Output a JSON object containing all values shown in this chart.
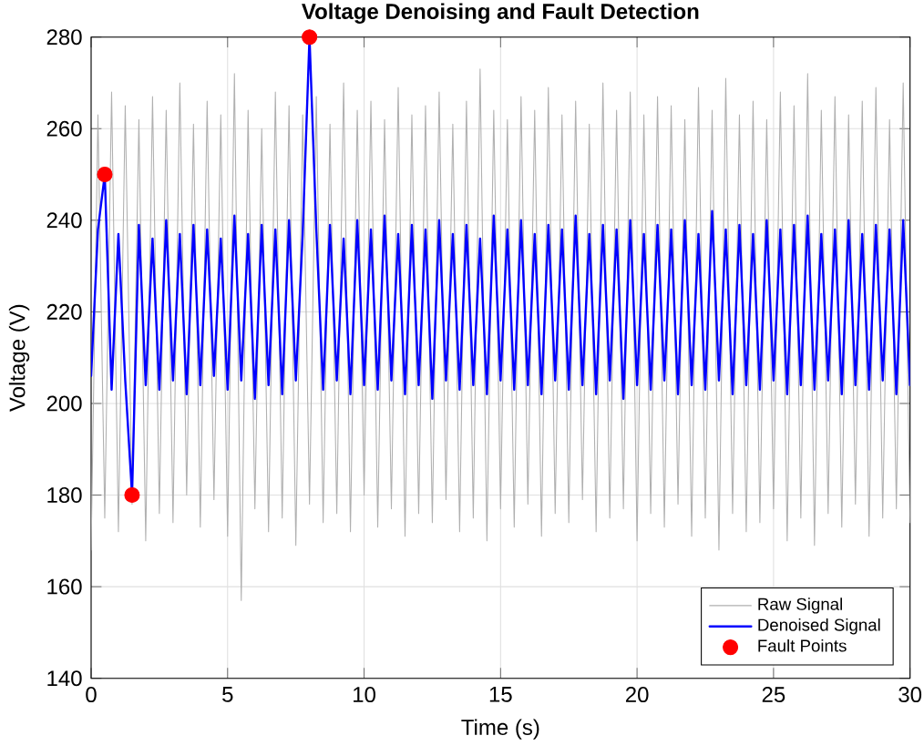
{
  "chart_data": {
    "type": "line",
    "title": "Voltage Denoising and Fault Detection",
    "xlabel": "Time (s)",
    "ylabel": "Voltage (V)",
    "x": [
      0,
      0.25,
      0.5,
      0.75,
      1,
      1.25,
      1.5,
      1.75,
      2,
      2.25,
      2.5,
      2.75,
      3,
      3.25,
      3.5,
      3.75,
      4,
      4.25,
      4.5,
      4.75,
      5,
      5.25,
      5.5,
      5.75,
      6,
      6.25,
      6.5,
      6.75,
      7,
      7.25,
      7.5,
      7.75,
      8,
      8.25,
      8.5,
      8.75,
      9,
      9.25,
      9.5,
      9.75,
      10,
      10.25,
      10.5,
      10.75,
      11,
      11.25,
      11.5,
      11.75,
      12,
      12.25,
      12.5,
      12.75,
      13,
      13.25,
      13.5,
      13.75,
      14,
      14.25,
      14.5,
      14.75,
      15,
      15.25,
      15.5,
      15.75,
      16,
      16.25,
      16.5,
      16.75,
      17,
      17.25,
      17.5,
      17.75,
      18,
      18.25,
      18.5,
      18.75,
      19,
      19.25,
      19.5,
      19.75,
      20,
      20.25,
      20.5,
      20.75,
      21,
      21.25,
      21.5,
      21.75,
      22,
      22.25,
      22.5,
      22.75,
      23,
      23.25,
      23.5,
      23.75,
      24,
      24.25,
      24.5,
      24.75,
      25,
      25.25,
      25.5,
      25.75,
      26,
      26.25,
      26.5,
      26.75,
      27,
      27.25,
      27.5,
      27.75,
      28,
      28.25,
      28.5,
      28.75,
      29,
      29.25,
      29.5,
      29.75,
      30
    ],
    "series": [
      {
        "name": "Raw Signal",
        "color": "#b0b0b0",
        "values": [
          168,
          263,
          175,
          268,
          172,
          265,
          178,
          262,
          170,
          267,
          176,
          264,
          174,
          270,
          180,
          261,
          173,
          266,
          179,
          263,
          171,
          272,
          157,
          264,
          177,
          260,
          172,
          268,
          175,
          265,
          169,
          263,
          178,
          267,
          174,
          261,
          176,
          270,
          172,
          264,
          180,
          266,
          173,
          262,
          177,
          269,
          171,
          263,
          176,
          265,
          174,
          268,
          179,
          261,
          172,
          266,
          175,
          273,
          170,
          264,
          177,
          262,
          173,
          267,
          178,
          264,
          171,
          269,
          176,
          263,
          174,
          266,
          179,
          261,
          172,
          270,
          175,
          264,
          177,
          268,
          170,
          263,
          176,
          267,
          173,
          265,
          178,
          262,
          171,
          269,
          175,
          264,
          168,
          271,
          176,
          263,
          172,
          266,
          174,
          262,
          177,
          268,
          170,
          265,
          175,
          272,
          169,
          264,
          176,
          267,
          173,
          263,
          178,
          266,
          171,
          269,
          175,
          262,
          177,
          270,
          174
        ]
      },
      {
        "name": "Denoised Signal",
        "color": "#0000ff",
        "values": [
          206,
          238,
          250,
          203,
          237,
          205,
          180,
          239,
          204,
          236,
          203,
          240,
          205,
          237,
          202,
          239,
          204,
          238,
          206,
          236,
          203,
          241,
          205,
          237,
          201,
          239,
          204,
          238,
          202,
          240,
          205,
          237,
          280,
          238,
          203,
          239,
          205,
          236,
          202,
          240,
          204,
          238,
          203,
          241,
          205,
          237,
          202,
          239,
          204,
          238,
          201,
          240,
          205,
          237,
          203,
          239,
          204,
          236,
          202,
          241,
          205,
          238,
          203,
          240,
          204,
          237,
          202,
          239,
          205,
          238,
          203,
          241,
          204,
          237,
          202,
          239,
          205,
          238,
          201,
          240,
          204,
          237,
          203,
          239,
          205,
          238,
          202,
          240,
          204,
          237,
          203,
          242,
          205,
          238,
          202,
          239,
          204,
          237,
          203,
          240,
          205,
          238,
          202,
          239,
          204,
          241,
          203,
          237,
          205,
          238,
          202,
          240,
          204,
          237,
          203,
          239,
          205,
          238,
          202,
          240,
          204
        ]
      },
      {
        "name": "Fault Points",
        "type": "scatter",
        "color": "#ff0000",
        "marker": "circle",
        "x": [
          0.5,
          1.5,
          8
        ],
        "values": [
          250,
          180,
          280
        ]
      }
    ],
    "xlim": [
      0,
      30
    ],
    "xticks": [
      0,
      5,
      10,
      15,
      20,
      25,
      30
    ],
    "ylim": [
      140,
      280
    ],
    "yticks": [
      140,
      160,
      180,
      200,
      220,
      240,
      260,
      280
    ],
    "grid": true,
    "legend": "bottom right"
  }
}
